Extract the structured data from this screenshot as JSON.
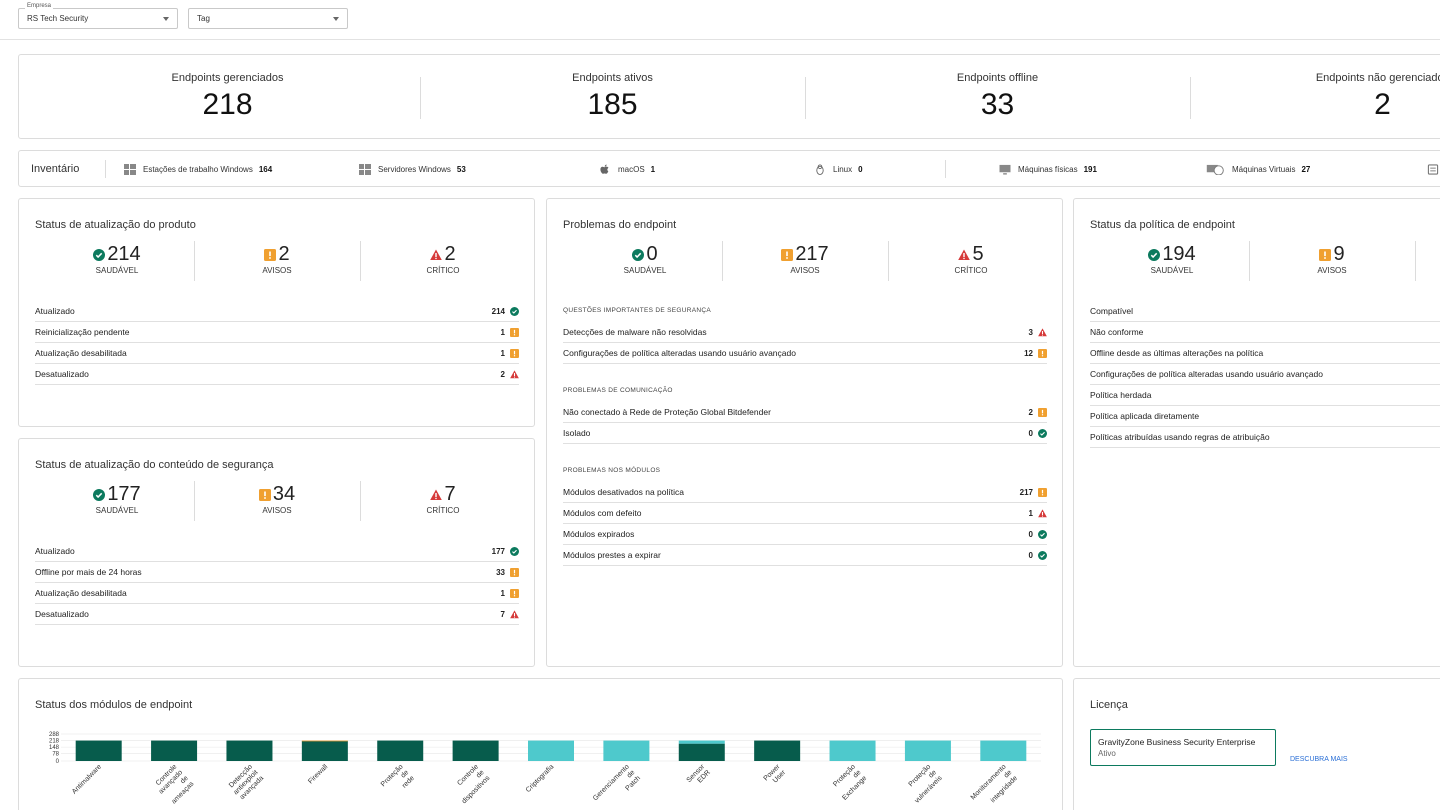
{
  "filters": {
    "company_label": "Empresa",
    "company_value": "RS Tech Security",
    "tag_value": "Tag"
  },
  "stats": [
    {
      "label": "Endpoints gerenciados",
      "value": "218"
    },
    {
      "label": "Endpoints ativos",
      "value": "185"
    },
    {
      "label": "Endpoints offline",
      "value": "33"
    },
    {
      "label": "Endpoints não gerenciados",
      "value": "2"
    }
  ],
  "inventory": {
    "title": "Inventário",
    "items": [
      {
        "label": "Estações de trabalho Windows",
        "value": "164",
        "icon": "windows-icon"
      },
      {
        "label": "Servidores Windows",
        "value": "53",
        "icon": "windows-icon"
      },
      {
        "label": "macOS",
        "value": "1",
        "icon": "apple-icon"
      },
      {
        "label": "Linux",
        "value": "0",
        "icon": "linux-icon"
      },
      {
        "label": "Máquinas físicas",
        "value": "191",
        "icon": "monitor-icon"
      },
      {
        "label": "Máquinas Virtuais",
        "value": "27",
        "icon": "cloud-monitor-icon"
      }
    ]
  },
  "product_update": {
    "title": "Status de atualização do produto",
    "summary": [
      {
        "value": "214",
        "caption": "SAUDÁVEL"
      },
      {
        "value": "2",
        "caption": "AVISOS"
      },
      {
        "value": "2",
        "caption": "CRÍTICO"
      }
    ],
    "rows": [
      {
        "label": "Atualizado",
        "value": "214",
        "status": "ok"
      },
      {
        "label": "Reinicialização pendente",
        "value": "1",
        "status": "warn"
      },
      {
        "label": "Atualização desabilitada",
        "value": "1",
        "status": "warn"
      },
      {
        "label": "Desatualizado",
        "value": "2",
        "status": "crit"
      }
    ]
  },
  "content_update": {
    "title": "Status de atualização do conteúdo de segurança",
    "summary": [
      {
        "value": "177",
        "caption": "SAUDÁVEL"
      },
      {
        "value": "34",
        "caption": "AVISOS"
      },
      {
        "value": "7",
        "caption": "CRÍTICO"
      }
    ],
    "rows": [
      {
        "label": "Atualizado",
        "value": "177",
        "status": "ok"
      },
      {
        "label": "Offline por mais de 24 horas",
        "value": "33",
        "status": "warn"
      },
      {
        "label": "Atualização desabilitada",
        "value": "1",
        "status": "warn"
      },
      {
        "label": "Desatualizado",
        "value": "7",
        "status": "crit"
      }
    ]
  },
  "endpoint_problems": {
    "title": "Problemas do endpoint",
    "summary": [
      {
        "value": "0",
        "caption": "SAUDÁVEL"
      },
      {
        "value": "217",
        "caption": "AVISOS"
      },
      {
        "value": "5",
        "caption": "CRÍTICO"
      }
    ],
    "sections": [
      {
        "title": "QUESTÕES IMPORTANTES DE SEGURANÇA",
        "rows": [
          {
            "label": "Detecções de malware não resolvidas",
            "value": "3",
            "status": "crit"
          },
          {
            "label": "Configurações de política alteradas usando usuário avançado",
            "value": "12",
            "status": "warn"
          }
        ]
      },
      {
        "title": "PROBLEMAS DE COMUNICAÇÃO",
        "rows": [
          {
            "label": "Não conectado à Rede de Proteção Global Bitdefender",
            "value": "2",
            "status": "warn"
          },
          {
            "label": "Isolado",
            "value": "0",
            "status": "ok"
          }
        ]
      },
      {
        "title": "PROBLEMAS NOS MÓDULOS",
        "rows": [
          {
            "label": "Módulos desativados na política",
            "value": "217",
            "status": "warn"
          },
          {
            "label": "Módulos com defeito",
            "value": "1",
            "status": "crit"
          },
          {
            "label": "Módulos expirados",
            "value": "0",
            "status": "ok"
          },
          {
            "label": "Módulos prestes a expirar",
            "value": "0",
            "status": "ok"
          }
        ]
      }
    ]
  },
  "policy_status": {
    "title": "Status da política de endpoint",
    "summary": [
      {
        "value": "194",
        "caption": "SAUDÁVEL"
      },
      {
        "value": "9",
        "caption": "AVISOS"
      }
    ],
    "rows": [
      "Compatível",
      "Não conforme",
      "Offline desde as últimas alterações na política",
      "Configurações de política alteradas usando usuário avançado",
      "Política herdada",
      "Política aplicada diretamente",
      "Políticas atribuídas usando regras de atribuição"
    ]
  },
  "modules": {
    "title": "Status dos módulos de endpoint"
  },
  "license": {
    "title": "Licença",
    "product": "GravityZone Business Security Enterprise",
    "status": "Ativo",
    "link": "DESCUBRA MAIS"
  },
  "colors": {
    "ok": "#0c7a5e",
    "warn": "#f0a030",
    "crit": "#d63a3a",
    "dark_bar": "#075c4c",
    "light_bar": "#4ec9cc"
  },
  "chart_data": {
    "type": "bar",
    "ylim": [
      0,
      288
    ],
    "yticks": [
      "288",
      "218",
      "148",
      "78",
      "0"
    ],
    "categories": [
      "Antimalware",
      "Controle avançado de ameaças",
      "Detecção antiexploit avançada",
      "Firewall",
      "Proteção de rede",
      "Controle de dispositivos",
      "Criptografia",
      "Gerenciamento de Patch",
      "Sensor EDR",
      "Power User",
      "Proteção de Exchange",
      "Proteção de vulneráveis",
      "Monitoramento de integridade"
    ],
    "labels_shown": [
      "Antimalware",
      "Controle\navançado\nde\nameaças",
      "Detecção\nantiexploit\navançada",
      "Firewall",
      "Proteção\nde\nrede",
      "Controle\nde\ndispositivos",
      "Criptografia",
      "Gerenciamento\nde\nPatch",
      "Sensor\nEDR",
      "Power\nUser",
      "Proteção\nde\nExchange",
      "Proteção\nde\nvulneráveis",
      "Monitoramento\nde\nintegridade"
    ],
    "series": [
      {
        "values": [
          218,
          218,
          218,
          214,
          218,
          218,
          0,
          0,
          185,
          218,
          0,
          0,
          0
        ]
      },
      {
        "values": [
          0,
          0,
          0,
          4,
          0,
          0,
          0,
          0,
          0,
          0,
          0,
          0,
          0
        ]
      },
      {
        "values": [
          0,
          0,
          0,
          0,
          0,
          0,
          218,
          218,
          33,
          0,
          218,
          218,
          218
        ]
      }
    ]
  }
}
